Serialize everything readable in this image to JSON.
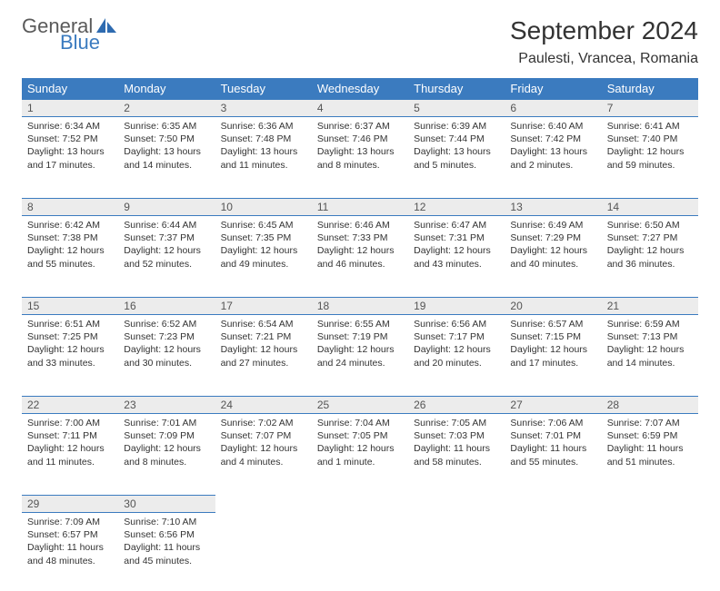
{
  "logo": {
    "top": "General",
    "bottom": "Blue"
  },
  "title": "September 2024",
  "location": "Paulesti, Vrancea, Romania",
  "colors": {
    "header_bg": "#3b7bbf",
    "header_text": "#ffffff",
    "daynum_bg": "#ececec",
    "border": "#3b7bbf",
    "body_text": "#333333",
    "logo_gray": "#5a5a5a",
    "logo_blue": "#3b7bbf"
  },
  "day_names": [
    "Sunday",
    "Monday",
    "Tuesday",
    "Wednesday",
    "Thursday",
    "Friday",
    "Saturday"
  ],
  "weeks": [
    [
      {
        "n": "1",
        "sr": "6:34 AM",
        "ss": "7:52 PM",
        "dl": "13 hours and 17 minutes."
      },
      {
        "n": "2",
        "sr": "6:35 AM",
        "ss": "7:50 PM",
        "dl": "13 hours and 14 minutes."
      },
      {
        "n": "3",
        "sr": "6:36 AM",
        "ss": "7:48 PM",
        "dl": "13 hours and 11 minutes."
      },
      {
        "n": "4",
        "sr": "6:37 AM",
        "ss": "7:46 PM",
        "dl": "13 hours and 8 minutes."
      },
      {
        "n": "5",
        "sr": "6:39 AM",
        "ss": "7:44 PM",
        "dl": "13 hours and 5 minutes."
      },
      {
        "n": "6",
        "sr": "6:40 AM",
        "ss": "7:42 PM",
        "dl": "13 hours and 2 minutes."
      },
      {
        "n": "7",
        "sr": "6:41 AM",
        "ss": "7:40 PM",
        "dl": "12 hours and 59 minutes."
      }
    ],
    [
      {
        "n": "8",
        "sr": "6:42 AM",
        "ss": "7:38 PM",
        "dl": "12 hours and 55 minutes."
      },
      {
        "n": "9",
        "sr": "6:44 AM",
        "ss": "7:37 PM",
        "dl": "12 hours and 52 minutes."
      },
      {
        "n": "10",
        "sr": "6:45 AM",
        "ss": "7:35 PM",
        "dl": "12 hours and 49 minutes."
      },
      {
        "n": "11",
        "sr": "6:46 AM",
        "ss": "7:33 PM",
        "dl": "12 hours and 46 minutes."
      },
      {
        "n": "12",
        "sr": "6:47 AM",
        "ss": "7:31 PM",
        "dl": "12 hours and 43 minutes."
      },
      {
        "n": "13",
        "sr": "6:49 AM",
        "ss": "7:29 PM",
        "dl": "12 hours and 40 minutes."
      },
      {
        "n": "14",
        "sr": "6:50 AM",
        "ss": "7:27 PM",
        "dl": "12 hours and 36 minutes."
      }
    ],
    [
      {
        "n": "15",
        "sr": "6:51 AM",
        "ss": "7:25 PM",
        "dl": "12 hours and 33 minutes."
      },
      {
        "n": "16",
        "sr": "6:52 AM",
        "ss": "7:23 PM",
        "dl": "12 hours and 30 minutes."
      },
      {
        "n": "17",
        "sr": "6:54 AM",
        "ss": "7:21 PM",
        "dl": "12 hours and 27 minutes."
      },
      {
        "n": "18",
        "sr": "6:55 AM",
        "ss": "7:19 PM",
        "dl": "12 hours and 24 minutes."
      },
      {
        "n": "19",
        "sr": "6:56 AM",
        "ss": "7:17 PM",
        "dl": "12 hours and 20 minutes."
      },
      {
        "n": "20",
        "sr": "6:57 AM",
        "ss": "7:15 PM",
        "dl": "12 hours and 17 minutes."
      },
      {
        "n": "21",
        "sr": "6:59 AM",
        "ss": "7:13 PM",
        "dl": "12 hours and 14 minutes."
      }
    ],
    [
      {
        "n": "22",
        "sr": "7:00 AM",
        "ss": "7:11 PM",
        "dl": "12 hours and 11 minutes."
      },
      {
        "n": "23",
        "sr": "7:01 AM",
        "ss": "7:09 PM",
        "dl": "12 hours and 8 minutes."
      },
      {
        "n": "24",
        "sr": "7:02 AM",
        "ss": "7:07 PM",
        "dl": "12 hours and 4 minutes."
      },
      {
        "n": "25",
        "sr": "7:04 AM",
        "ss": "7:05 PM",
        "dl": "12 hours and 1 minute."
      },
      {
        "n": "26",
        "sr": "7:05 AM",
        "ss": "7:03 PM",
        "dl": "11 hours and 58 minutes."
      },
      {
        "n": "27",
        "sr": "7:06 AM",
        "ss": "7:01 PM",
        "dl": "11 hours and 55 minutes."
      },
      {
        "n": "28",
        "sr": "7:07 AM",
        "ss": "6:59 PM",
        "dl": "11 hours and 51 minutes."
      }
    ],
    [
      {
        "n": "29",
        "sr": "7:09 AM",
        "ss": "6:57 PM",
        "dl": "11 hours and 48 minutes."
      },
      {
        "n": "30",
        "sr": "7:10 AM",
        "ss": "6:56 PM",
        "dl": "11 hours and 45 minutes."
      },
      null,
      null,
      null,
      null,
      null
    ]
  ],
  "labels": {
    "sunrise": "Sunrise:",
    "sunset": "Sunset:",
    "daylight": "Daylight:"
  }
}
